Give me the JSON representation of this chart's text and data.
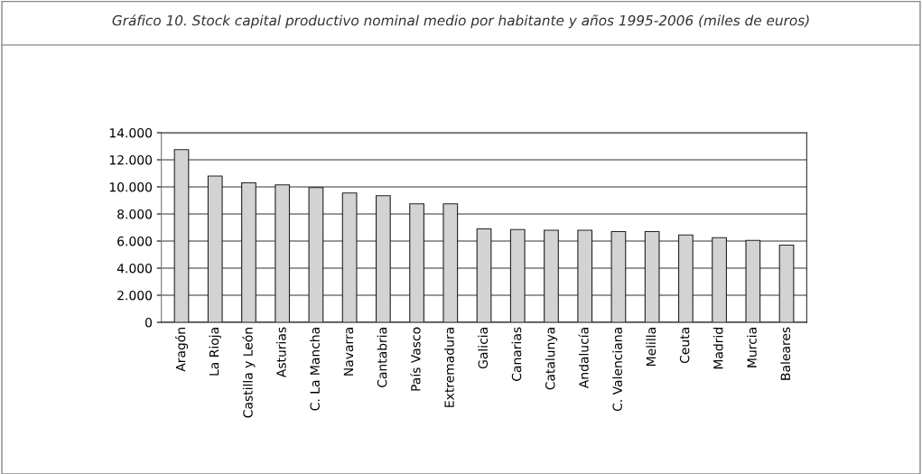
{
  "chart_data": {
    "type": "bar",
    "title": "Gráfico 10. Stock capital productivo nominal medio por habitante y años 1995-2006 (miles de euros)",
    "categories": [
      "Aragón",
      "La Rioja",
      "Castilla y León",
      "Asturias",
      "C. La Mancha",
      "Navarra",
      "Cantabria",
      "País Vasco",
      "Extremadura",
      "Galicia",
      "Canarias",
      "Catalunya",
      "Andalucía",
      "C. Valenciana",
      "Melilla",
      "Ceuta",
      "Madrid",
      "Murcia",
      "Baleares"
    ],
    "values": [
      12750,
      10800,
      10300,
      10150,
      9950,
      9550,
      9350,
      8750,
      8750,
      6900,
      6850,
      6800,
      6800,
      6700,
      6700,
      6450,
      6250,
      6050,
      5700
    ],
    "color": "#d3d3d3",
    "ylim": [
      0,
      14000
    ],
    "yticks": [
      {
        "value": 0,
        "label": "0"
      },
      {
        "value": 2000,
        "label": "2.000"
      },
      {
        "value": 4000,
        "label": "4.000"
      },
      {
        "value": 6000,
        "label": "6.000"
      },
      {
        "value": 8000,
        "label": "8.000"
      },
      {
        "value": 10000,
        "label": "10.000"
      },
      {
        "value": 12000,
        "label": "12.000"
      },
      {
        "value": 14000,
        "label": "14.000"
      }
    ],
    "grid": "y"
  }
}
